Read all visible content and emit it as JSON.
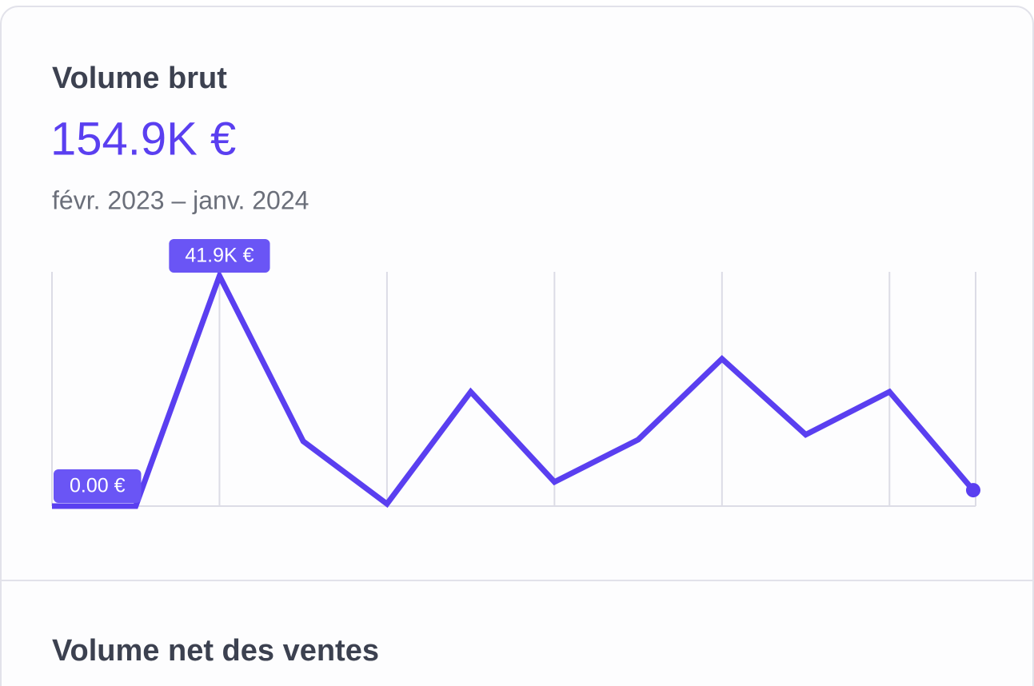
{
  "card": {
    "title": "Volume brut",
    "total": "154.9K €",
    "period": "févr. 2023 – janv. 2024"
  },
  "chart_data": {
    "type": "line",
    "color": "#5a3ff0",
    "values": [
      0,
      0,
      41.9,
      11.8,
      0.4,
      20.8,
      4.4,
      12.1,
      26.8,
      13.0,
      20.8,
      2.9
    ],
    "value_labels": [
      "0.00 €",
      null,
      "41.9K €",
      null,
      null,
      null,
      null,
      null,
      null,
      null,
      null,
      null
    ],
    "ylim": [
      0,
      41.9
    ],
    "grid": true
  },
  "next_section": {
    "title": "Volume net des ventes"
  }
}
